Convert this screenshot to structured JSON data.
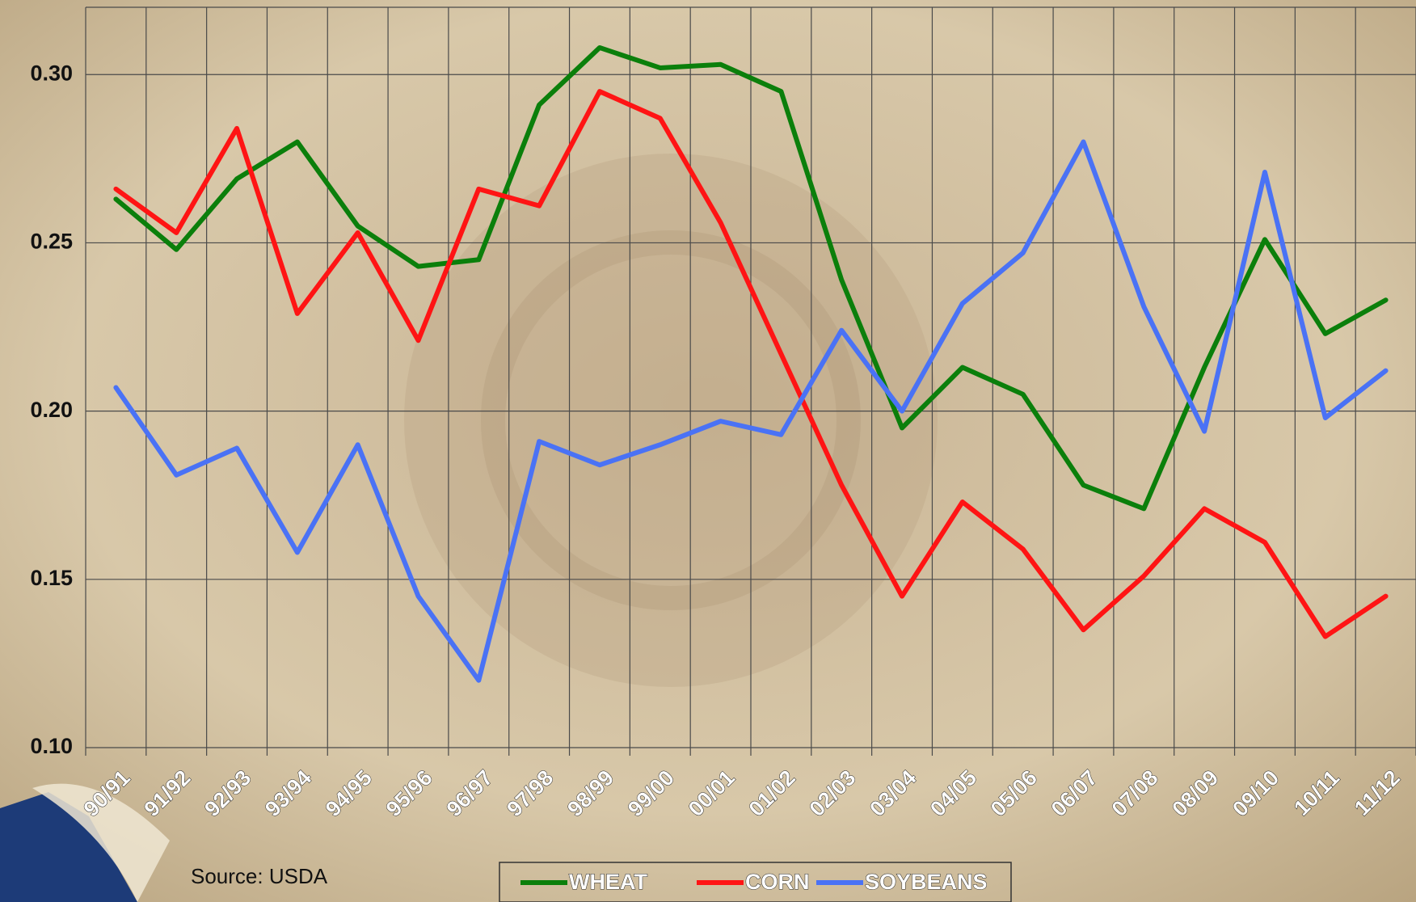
{
  "chart_data": {
    "type": "line",
    "categories": [
      "90/91",
      "91/92",
      "92/93",
      "93/94",
      "94/95",
      "95/96",
      "96/97",
      "97/98",
      "98/99",
      "99/00",
      "00/01",
      "01/02",
      "02/03",
      "03/04",
      "04/05",
      "05/06",
      "06/07",
      "07/08",
      "08/09",
      "09/10",
      "10/11",
      "11/12"
    ],
    "series": [
      {
        "name": "WHEAT",
        "color": "#0b7f0b",
        "values": [
          0.263,
          0.248,
          0.269,
          0.28,
          0.255,
          0.243,
          0.245,
          0.291,
          0.308,
          0.302,
          0.303,
          0.295,
          0.239,
          0.195,
          0.213,
          0.205,
          0.178,
          0.171,
          0.213,
          0.251,
          0.223,
          0.233
        ]
      },
      {
        "name": "CORN",
        "color": "#ff1414",
        "values": [
          0.266,
          0.253,
          0.284,
          0.229,
          0.253,
          0.221,
          0.266,
          0.261,
          0.295,
          0.287,
          0.256,
          0.217,
          0.178,
          0.145,
          0.173,
          0.159,
          0.135,
          0.151,
          0.171,
          0.161,
          0.133,
          0.145
        ]
      },
      {
        "name": "SOYBEANS",
        "color": "#4a72f5",
        "values": [
          0.207,
          0.181,
          0.189,
          0.158,
          0.19,
          0.145,
          0.12,
          0.191,
          0.184,
          0.19,
          0.197,
          0.193,
          0.224,
          0.2,
          0.232,
          0.247,
          0.28,
          0.231,
          0.194,
          0.271,
          0.198,
          0.212
        ]
      }
    ],
    "ylim": [
      0.1,
      0.32
    ],
    "yticks": [
      {
        "value": 0.1,
        "label": "0.10"
      },
      {
        "value": 0.15,
        "label": "0.15"
      },
      {
        "value": 0.2,
        "label": "0.20"
      },
      {
        "value": 0.25,
        "label": "0.25"
      },
      {
        "value": 0.3,
        "label": "0.30"
      }
    ],
    "grid": true,
    "legend": "bottom",
    "source": "Source: USDA"
  }
}
